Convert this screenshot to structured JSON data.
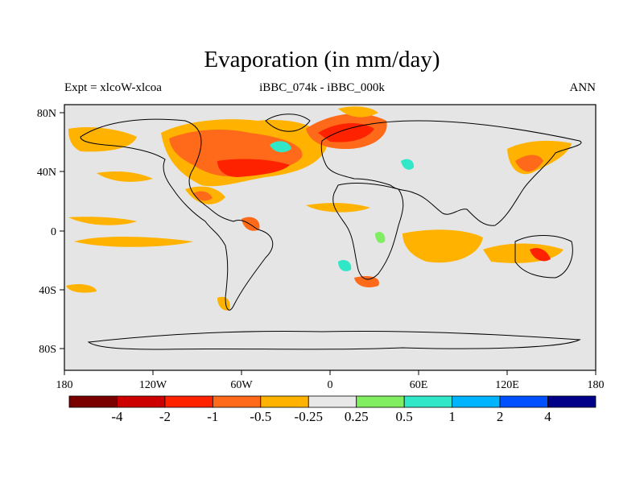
{
  "title": "Evaporation (in mm/day)",
  "subtitle_left": "Expt = xlcoW-xlcoa",
  "subtitle_center": "iBBC_074k - iBBC_000k",
  "subtitle_right": "ANN",
  "axes": {
    "x_ticks": [
      "180",
      "120W",
      "60W",
      "0",
      "60E",
      "120E",
      "180"
    ],
    "y_ticks": [
      "80N",
      "40N",
      "0",
      "40S",
      "80S"
    ]
  },
  "colorbar": {
    "labels": [
      "-4",
      "-2",
      "-1",
      "-0.5",
      "-0.25",
      "0.25",
      "0.5",
      "1",
      "2",
      "4"
    ],
    "colors": [
      "#7a0000",
      "#cc0000",
      "#ff2200",
      "#ff6a1a",
      "#ffb300",
      "#e8e8e8",
      "#80ee60",
      "#30e8c8",
      "#00b4ff",
      "#0050ff",
      "#000088"
    ]
  },
  "colors": {
    "ocean_land_fill": "#e5e5e5",
    "coast": "#000000"
  }
}
